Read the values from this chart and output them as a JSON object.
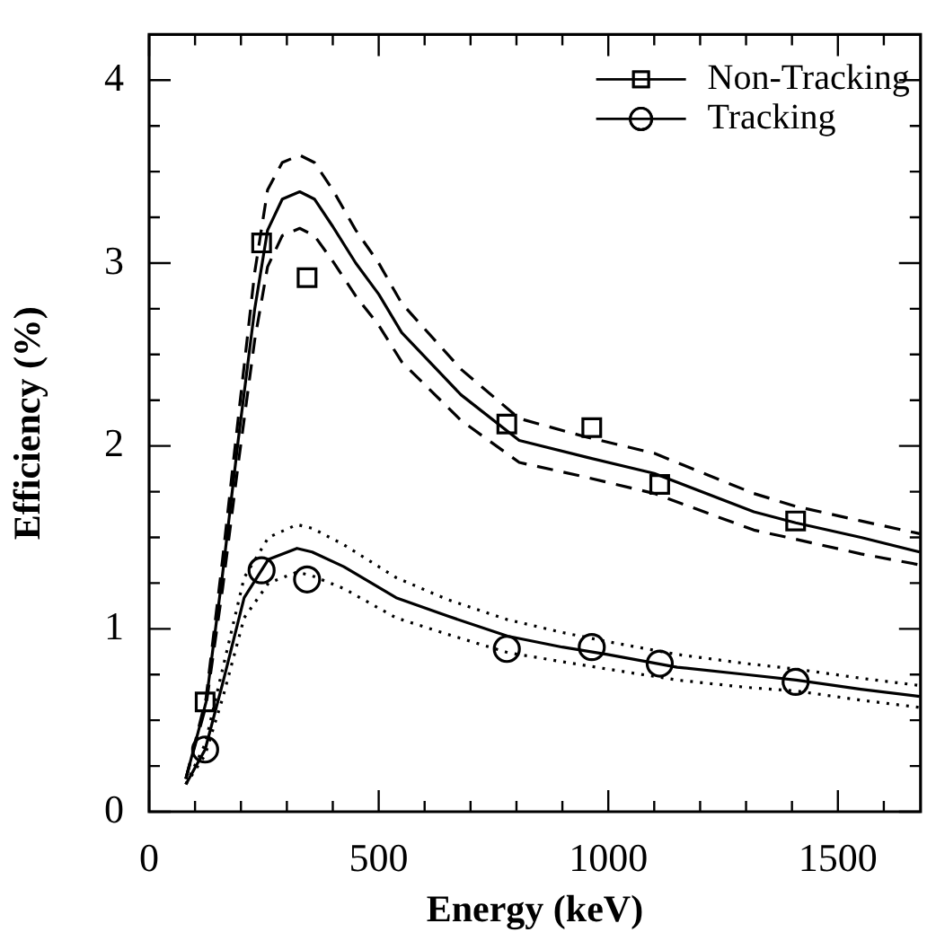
{
  "chart_data": {
    "type": "line",
    "xlabel": "Energy (keV)",
    "ylabel": "Efficiency (%)",
    "xlim": [
      0,
      1680
    ],
    "ylim": [
      0,
      4.25
    ],
    "xticks": [
      0,
      {
        "value": 100,
        "label": null
      },
      {
        "value": 200,
        "label": null
      },
      {
        "value": 300,
        "label": null
      },
      {
        "value": 400,
        "label": null
      },
      500,
      {
        "value": 600,
        "label": null
      },
      {
        "value": 700,
        "label": null
      },
      {
        "value": 800,
        "label": null
      },
      {
        "value": 900,
        "label": null
      },
      1000,
      {
        "value": 1100,
        "label": null
      },
      {
        "value": 1200,
        "label": null
      },
      {
        "value": 1300,
        "label": null
      },
      {
        "value": 1400,
        "label": null
      },
      1500,
      {
        "value": 1600,
        "label": null
      }
    ],
    "yticks": [
      0,
      {
        "value": 0.25,
        "label": null
      },
      {
        "value": 0.5,
        "label": null
      },
      {
        "value": 0.75,
        "label": null
      },
      1,
      {
        "value": 1.25,
        "label": null
      },
      {
        "value": 1.5,
        "label": null
      },
      {
        "value": 1.75,
        "label": null
      },
      2,
      {
        "value": 2.25,
        "label": null
      },
      {
        "value": 2.5,
        "label": null
      },
      {
        "value": 2.75,
        "label": null
      },
      3,
      {
        "value": 3.25,
        "label": null
      },
      {
        "value": 3.5,
        "label": null
      },
      {
        "value": 3.75,
        "label": null
      },
      4
    ],
    "grid": false,
    "legend": "top right",
    "series": [
      {
        "name": "Non-Tracking",
        "type": "scatter",
        "marker": "square",
        "color": "#000000",
        "x": [
          122,
          245,
          344,
          779,
          964,
          1112,
          1408
        ],
        "values": [
          0.6,
          3.11,
          2.92,
          2.12,
          2.1,
          1.79,
          1.59
        ]
      },
      {
        "name": "Tracking",
        "type": "scatter",
        "marker": "circle",
        "color": "#000000",
        "x": [
          122,
          245,
          344,
          779,
          964,
          1112,
          1408
        ],
        "values": [
          0.34,
          1.32,
          1.27,
          0.89,
          0.9,
          0.81,
          0.71
        ]
      },
      {
        "line_style": "solid",
        "color": "#000000",
        "x": [
          80,
          124,
          160,
          194,
          230,
          258,
          290,
          328,
          360,
          400,
          450,
          500,
          550,
          679,
          806,
          950,
          1100,
          1317,
          1408,
          1550,
          1678
        ],
        "values": [
          0.18,
          0.6,
          1.3,
          2.03,
          2.75,
          3.18,
          3.35,
          3.39,
          3.35,
          3.2,
          3.0,
          2.83,
          2.62,
          2.28,
          2.03,
          1.94,
          1.85,
          1.64,
          1.58,
          1.5,
          1.42
        ]
      },
      {
        "line_style": "dashed",
        "color": "#000000",
        "x": [
          80,
          124,
          160,
          194,
          230,
          258,
          290,
          328,
          360,
          400,
          450,
          500,
          550,
          679,
          806,
          950,
          1100,
          1317,
          1408,
          1550,
          1678
        ],
        "values": [
          0.18,
          0.62,
          1.38,
          2.15,
          2.95,
          3.4,
          3.55,
          3.59,
          3.55,
          3.4,
          3.18,
          3.0,
          2.78,
          2.42,
          2.15,
          2.05,
          1.96,
          1.74,
          1.67,
          1.59,
          1.52
        ]
      },
      {
        "line_style": "dashed",
        "color": "#000000",
        "x": [
          80,
          124,
          160,
          194,
          230,
          258,
          290,
          328,
          360,
          400,
          450,
          500,
          550,
          679,
          806,
          950,
          1100,
          1317,
          1408,
          1550,
          1678
        ],
        "values": [
          0.18,
          0.58,
          1.22,
          1.9,
          2.58,
          2.98,
          3.15,
          3.19,
          3.15,
          3.01,
          2.82,
          2.66,
          2.46,
          2.14,
          1.91,
          1.83,
          1.74,
          1.54,
          1.49,
          1.41,
          1.35
        ]
      },
      {
        "line_style": "solid",
        "color": "#000000",
        "x": [
          80,
          122,
          160,
          207,
          260,
          322,
          355,
          424,
          538,
          650,
          781,
          900,
          998,
          1150,
          1300,
          1409,
          1550,
          1678
        ],
        "values": [
          0.15,
          0.34,
          0.7,
          1.17,
          1.38,
          1.44,
          1.42,
          1.34,
          1.17,
          1.07,
          0.96,
          0.9,
          0.86,
          0.79,
          0.75,
          0.72,
          0.67,
          0.63
        ]
      },
      {
        "line_style": "dotted",
        "color": "#000000",
        "x": [
          80,
          122,
          160,
          207,
          260,
          322,
          355,
          424,
          538,
          650,
          781,
          900,
          998,
          1150,
          1300,
          1409,
          1550,
          1678
        ],
        "values": [
          0.15,
          0.37,
          0.78,
          1.28,
          1.5,
          1.57,
          1.55,
          1.46,
          1.28,
          1.16,
          1.05,
          0.98,
          0.93,
          0.86,
          0.81,
          0.78,
          0.73,
          0.69
        ]
      },
      {
        "line_style": "dotted",
        "color": "#000000",
        "x": [
          80,
          122,
          160,
          207,
          260,
          322,
          355,
          424,
          538,
          650,
          781,
          900,
          998,
          1150,
          1300,
          1409,
          1550,
          1678
        ],
        "values": [
          0.15,
          0.31,
          0.62,
          1.06,
          1.25,
          1.31,
          1.29,
          1.22,
          1.06,
          0.97,
          0.87,
          0.82,
          0.78,
          0.72,
          0.68,
          0.66,
          0.61,
          0.57
        ]
      }
    ]
  }
}
